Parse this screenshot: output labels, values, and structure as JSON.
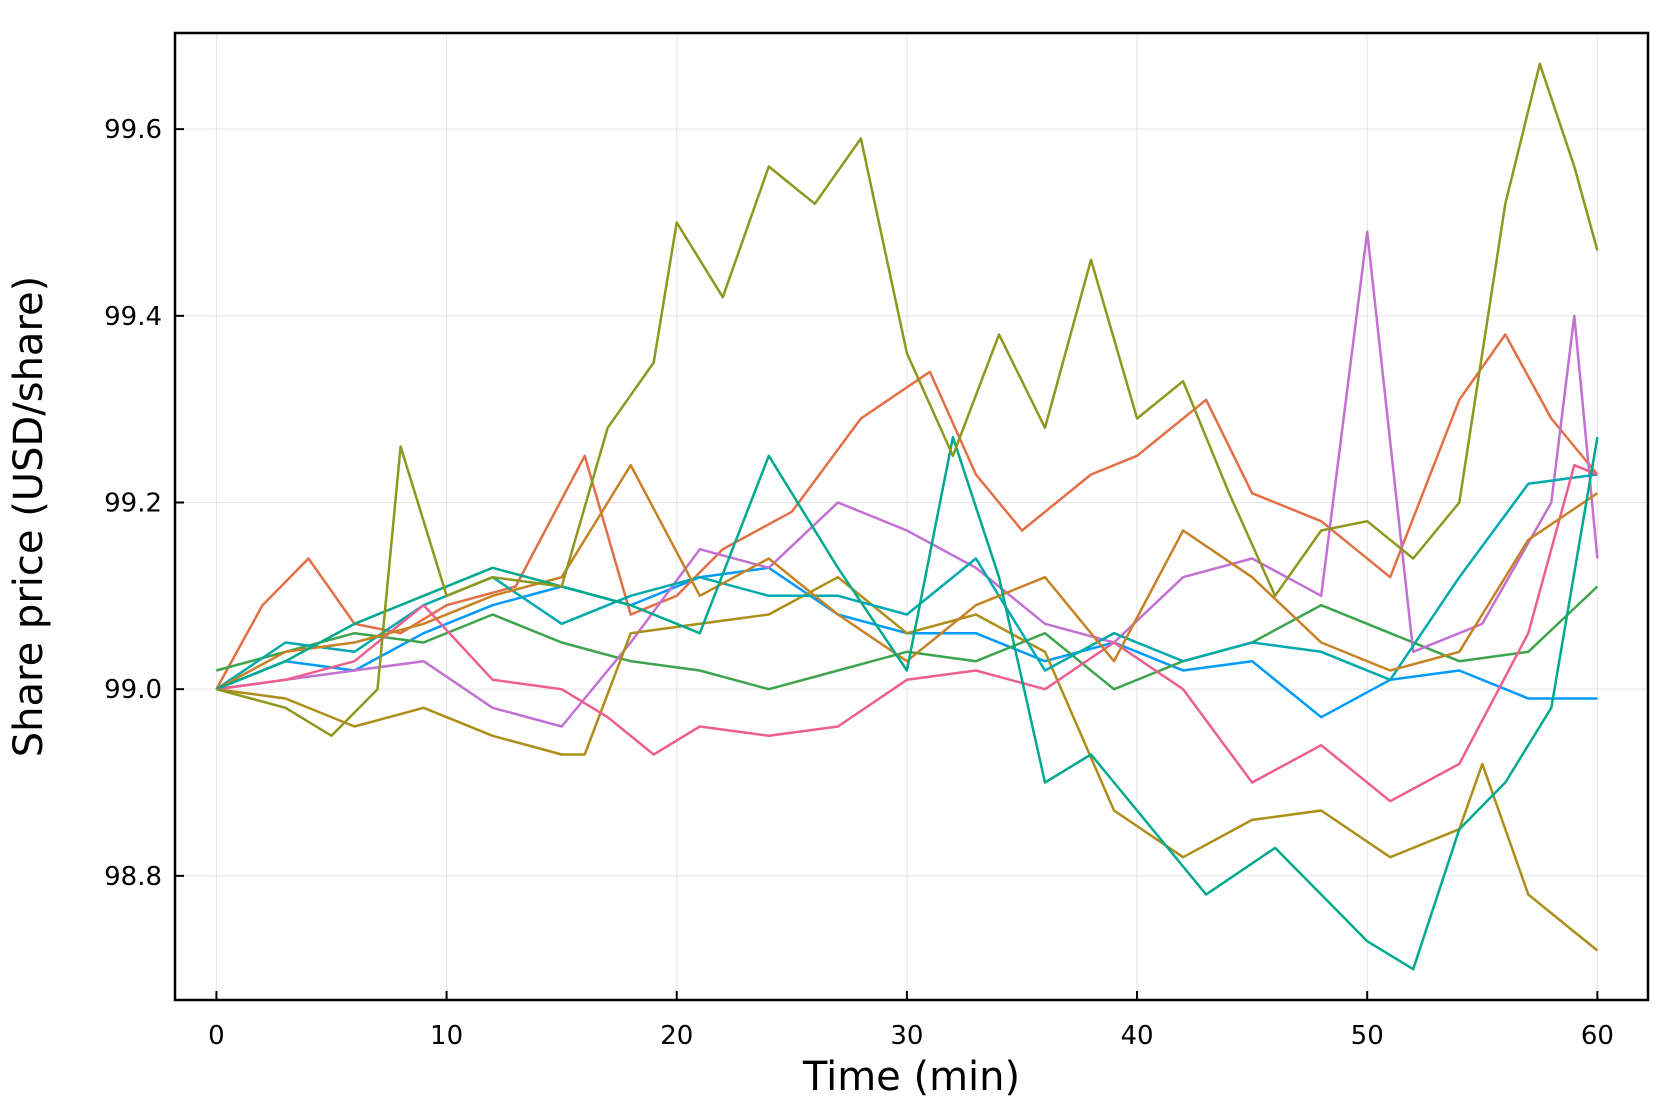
{
  "chart_data": {
    "type": "line",
    "xlabel": "Time (min)",
    "ylabel": "Share price (USD/share)",
    "xlim": [
      -1.8,
      62.2
    ],
    "ylim": [
      98.667,
      99.703
    ],
    "xticks": [
      0,
      10,
      20,
      30,
      40,
      50,
      60
    ],
    "xtick_labels": [
      "0",
      "10",
      "20",
      "30",
      "40",
      "50",
      "60"
    ],
    "yticks": [
      98.8,
      99.0,
      99.2,
      99.4,
      99.6
    ],
    "ytick_labels": [
      "98.8",
      "99.0",
      "99.2",
      "99.4",
      "99.6"
    ],
    "grid": true,
    "legend": "none",
    "series": [
      {
        "color": "#009AFA",
        "x": [
          0,
          3,
          6,
          9,
          12,
          15,
          18,
          21,
          24,
          27,
          30,
          33,
          36,
          39,
          42,
          45,
          48,
          51,
          54,
          57,
          60
        ],
        "y": [
          99.0,
          99.03,
          99.02,
          99.06,
          99.09,
          99.11,
          99.09,
          99.12,
          99.13,
          99.08,
          99.06,
          99.06,
          99.03,
          99.05,
          99.02,
          99.03,
          98.97,
          99.01,
          99.02,
          98.99,
          98.99
        ]
      },
      {
        "color": "#E26F46",
        "x": [
          0,
          2,
          4,
          6,
          8,
          10,
          13,
          16,
          18,
          20,
          22,
          25,
          28,
          31,
          33,
          35,
          38,
          40,
          43,
          45,
          48,
          51,
          54,
          56,
          58,
          60
        ],
        "y": [
          99.0,
          99.09,
          99.14,
          99.07,
          99.06,
          99.09,
          99.11,
          99.25,
          99.08,
          99.1,
          99.15,
          99.19,
          99.29,
          99.34,
          99.23,
          99.17,
          99.23,
          99.25,
          99.31,
          99.21,
          99.18,
          99.12,
          99.31,
          99.38,
          99.29,
          99.23
        ]
      },
      {
        "color": "#3DA44D",
        "x": [
          0,
          3,
          6,
          9,
          12,
          15,
          18,
          21,
          24,
          27,
          30,
          33,
          36,
          39,
          42,
          45,
          48,
          51,
          54,
          57,
          60
        ],
        "y": [
          99.02,
          99.04,
          99.06,
          99.05,
          99.08,
          99.05,
          99.03,
          99.02,
          99.0,
          99.02,
          99.04,
          99.03,
          99.06,
          99.0,
          99.03,
          99.05,
          99.09,
          99.06,
          99.03,
          99.04,
          99.11
        ]
      },
      {
        "color": "#C271D2",
        "x": [
          0,
          3,
          6,
          9,
          12,
          15,
          18,
          21,
          24,
          27,
          30,
          33,
          36,
          39,
          42,
          45,
          48,
          50,
          52,
          55,
          58,
          59,
          60
        ],
        "y": [
          99.0,
          99.01,
          99.02,
          99.03,
          98.98,
          98.96,
          99.05,
          99.15,
          99.13,
          99.2,
          99.17,
          99.13,
          99.07,
          99.05,
          99.12,
          99.14,
          99.1,
          99.49,
          99.04,
          99.07,
          99.2,
          99.4,
          99.14
        ]
      },
      {
        "color": "#AC8E18",
        "x": [
          0,
          3,
          6,
          9,
          12,
          15,
          16,
          18,
          21,
          24,
          27,
          30,
          33,
          36,
          39,
          42,
          45,
          48,
          51,
          54,
          55,
          57,
          59,
          60
        ],
        "y": [
          99.0,
          98.99,
          98.96,
          98.98,
          98.95,
          98.93,
          98.93,
          99.06,
          99.07,
          99.08,
          99.12,
          99.06,
          99.08,
          99.04,
          98.87,
          98.82,
          98.86,
          98.87,
          98.82,
          98.85,
          98.92,
          98.78,
          98.74,
          98.72
        ]
      },
      {
        "color": "#00A9AD",
        "x": [
          0,
          3,
          6,
          9,
          12,
          15,
          18,
          21,
          24,
          27,
          30,
          33,
          36,
          39,
          42,
          45,
          48,
          51,
          54,
          57,
          60
        ],
        "y": [
          99.0,
          99.05,
          99.04,
          99.09,
          99.12,
          99.07,
          99.1,
          99.12,
          99.1,
          99.1,
          99.08,
          99.14,
          99.02,
          99.06,
          99.03,
          99.05,
          99.04,
          99.01,
          99.12,
          99.22,
          99.23
        ]
      },
      {
        "color": "#ED5E93",
        "x": [
          0,
          3,
          6,
          9,
          12,
          15,
          17,
          19,
          21,
          24,
          27,
          30,
          33,
          36,
          39,
          42,
          45,
          48,
          51,
          54,
          57,
          59,
          60
        ],
        "y": [
          99.0,
          99.01,
          99.03,
          99.09,
          99.01,
          99.0,
          98.97,
          98.93,
          98.96,
          98.95,
          98.96,
          99.01,
          99.02,
          99.0,
          99.05,
          99.0,
          98.9,
          98.94,
          98.88,
          98.92,
          99.06,
          99.24,
          99.23
        ]
      },
      {
        "color": "#C68225",
        "x": [
          0,
          3,
          6,
          9,
          12,
          15,
          18,
          21,
          24,
          27,
          30,
          33,
          36,
          39,
          42,
          45,
          48,
          51,
          54,
          57,
          60
        ],
        "y": [
          99.0,
          99.04,
          99.05,
          99.07,
          99.1,
          99.12,
          99.24,
          99.1,
          99.14,
          99.08,
          99.03,
          99.09,
          99.12,
          99.03,
          99.17,
          99.12,
          99.05,
          99.02,
          99.04,
          99.16,
          99.21
        ]
      },
      {
        "color": "#00A98D",
        "x": [
          0,
          3,
          6,
          9,
          12,
          15,
          18,
          21,
          24,
          27,
          30,
          32,
          34,
          36,
          38,
          40,
          43,
          46,
          48,
          50,
          52,
          54,
          56,
          58,
          60
        ],
        "y": [
          99.0,
          99.03,
          99.07,
          99.1,
          99.13,
          99.11,
          99.09,
          99.06,
          99.25,
          99.13,
          99.02,
          99.27,
          99.12,
          98.9,
          98.93,
          98.87,
          98.78,
          98.83,
          98.78,
          98.73,
          98.7,
          98.85,
          98.9,
          98.98,
          99.27
        ]
      },
      {
        "color": "#8E971E",
        "x": [
          0,
          3,
          5,
          7,
          8,
          10,
          12,
          15,
          17,
          19,
          20,
          22,
          24,
          26,
          28,
          30,
          32,
          34,
          36,
          38,
          40,
          42,
          44,
          46,
          48,
          50,
          52,
          54,
          56,
          57.5,
          59,
          60
        ],
        "y": [
          99.0,
          98.98,
          98.95,
          99.0,
          99.26,
          99.1,
          99.12,
          99.11,
          99.28,
          99.35,
          99.5,
          99.42,
          99.56,
          99.52,
          99.59,
          99.36,
          99.25,
          99.38,
          99.28,
          99.46,
          99.29,
          99.33,
          99.21,
          99.1,
          99.17,
          99.18,
          99.14,
          99.2,
          99.52,
          99.67,
          99.56,
          99.47
        ]
      }
    ]
  }
}
